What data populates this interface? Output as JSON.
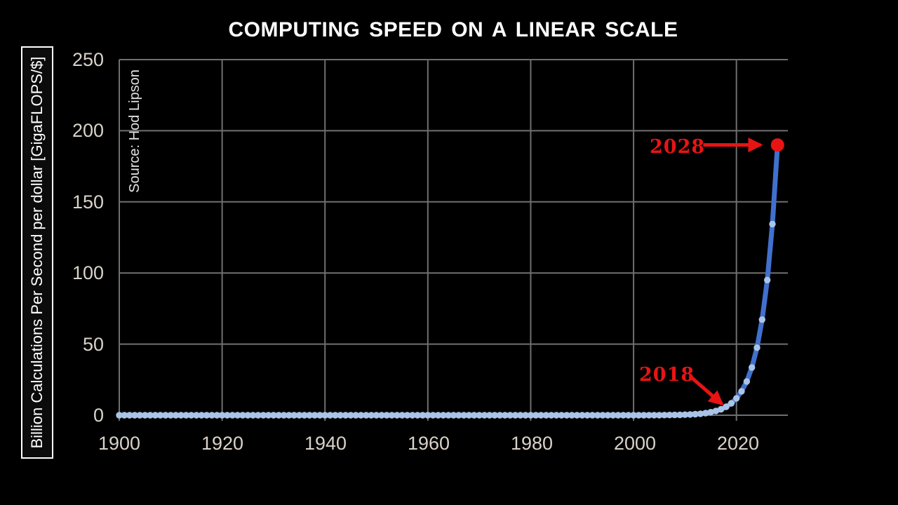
{
  "page": {
    "background": "#000000"
  },
  "chart": {
    "title": "COMPUTING SPEED ON A LINEAR SCALE",
    "y_axis_label": "Billion Calculations Per Second per dollar [GigaFLOPS/$]",
    "source": "Source: Hod Lipson"
  },
  "chart_data": {
    "type": "line",
    "title": "COMPUTING SPEED ON A LINEAR SCALE",
    "xlabel": "",
    "ylabel": "Billion Calculations Per Second per dollar [GigaFLOPS/$]",
    "source": "Source: Hod Lipson",
    "xlim": [
      1900,
      2030
    ],
    "ylim": [
      0,
      250
    ],
    "grid": true,
    "x_ticks": [
      1900,
      1920,
      1940,
      1960,
      1980,
      2000,
      2020
    ],
    "x_tick_labels": [
      "1900",
      "1920",
      "1940",
      "1960",
      "1980",
      "2000",
      "2020"
    ],
    "y_ticks": [
      0,
      50,
      100,
      150,
      200,
      250
    ],
    "y_tick_labels_top_down": [
      "250",
      "200",
      "150",
      "100",
      "50",
      "0"
    ],
    "series": [
      {
        "name": "GigaFLOPS per dollar",
        "marker": "circle",
        "start_year": 1900,
        "step": 1,
        "values": [
          0,
          0,
          0,
          0,
          0,
          0,
          0,
          0,
          0,
          0,
          0,
          0,
          0,
          0,
          0,
          0,
          0,
          0,
          0,
          0,
          0,
          0,
          0,
          0,
          0,
          0,
          0,
          0,
          0,
          0,
          0,
          0,
          0,
          0,
          0,
          0,
          0,
          0,
          0,
          0,
          0,
          0,
          0,
          0,
          0,
          0,
          0,
          0,
          0,
          0,
          0,
          0,
          0,
          0,
          0,
          0,
          0,
          0,
          0,
          0,
          0,
          0,
          0,
          0,
          0,
          0,
          0,
          0,
          0,
          0,
          0,
          0,
          0,
          0,
          0,
          0,
          0,
          0,
          0,
          0,
          0,
          0,
          0,
          0,
          0,
          0,
          0,
          0,
          0,
          0,
          0,
          0,
          0,
          0,
          0,
          0,
          0,
          0,
          0,
          0,
          0.01,
          0.02,
          0.02,
          0.03,
          0.05,
          0.07,
          0.09,
          0.13,
          0.19,
          0.26,
          0.37,
          0.52,
          0.74,
          1.05,
          1.5,
          2.1,
          3,
          4.2,
          5.9,
          8.4,
          11.9,
          16.8,
          23.7,
          33.6,
          47.5,
          67.2,
          95,
          134.4,
          190
        ],
        "highlight_last_point": true
      }
    ],
    "annotations": [
      {
        "label": "2028",
        "target_year": 2028,
        "target_value": 190,
        "direction": "right"
      },
      {
        "label": "2018",
        "target_year": 2018,
        "target_value": 5.9,
        "direction": "down-right"
      }
    ],
    "colors": {
      "background": "#000000",
      "grid": "#6f6f6f",
      "tick_text": "#d9d2c9",
      "title_text": "#ffffff",
      "dot": "#aac4e8",
      "line": "#4170cd",
      "accent_red": "#e81414"
    }
  }
}
